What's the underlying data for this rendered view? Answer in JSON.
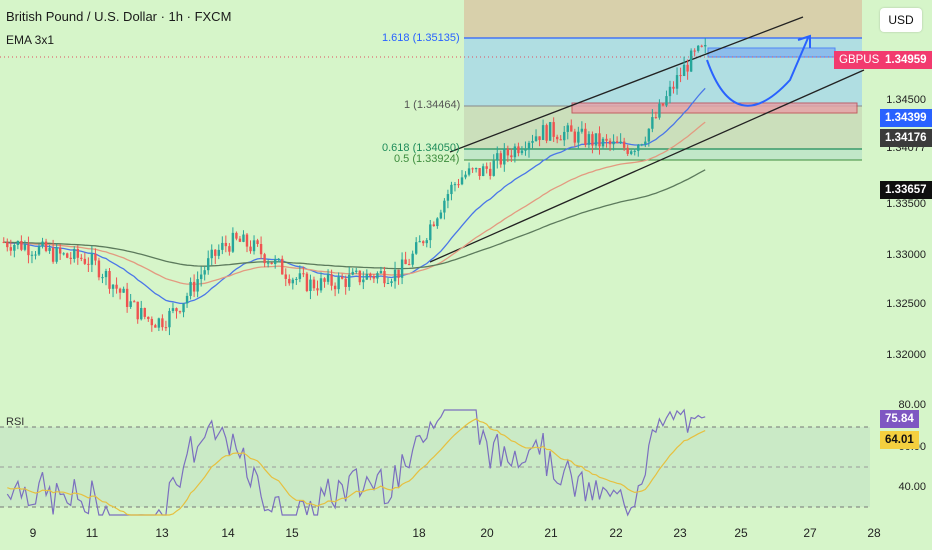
{
  "header": {
    "title": "British Pound / U.S. Dollar · 1h · FXCM",
    "indicator": "EMA 3x1"
  },
  "currency_button": "USD",
  "symbol_tag": "GBPUSD",
  "price_axis": {
    "ticks": [
      "1.34500",
      "1.34077",
      "1.33500",
      "1.33000",
      "1.32500",
      "1.32000"
    ]
  },
  "rsi": {
    "label": "RSI",
    "ticks": [
      "80.00",
      "60.00",
      "40.00"
    ],
    "value_tags": [
      "75.84",
      "64.01"
    ]
  },
  "price_tags": [
    {
      "value": "1.34959",
      "bg": "#f23a6e",
      "fg": "#ffffff"
    },
    {
      "value": "1.34399",
      "bg": "#2962ff",
      "fg": "#ffffff"
    },
    {
      "value": "1.34176",
      "bg": "#3b3b3b",
      "fg": "#ffffff"
    },
    {
      "value": "1.33657",
      "bg": "#0f0f0f",
      "fg": "#ffffff"
    }
  ],
  "fib_levels": [
    {
      "label": "1.618 (1.35135)",
      "color": "#2962ff"
    },
    {
      "label": "1 (1.34464)",
      "color": "#555555"
    },
    {
      "label": "0.618 (1.34050)",
      "color": "#1e8c5a"
    },
    {
      "label": "0.5 (1.33924)",
      "color": "#3d8c3d"
    }
  ],
  "x_axis": [
    "9",
    "11",
    "13",
    "14",
    "15",
    "18",
    "20",
    "21",
    "22",
    "23",
    "25",
    "27",
    "28"
  ],
  "chart_data": {
    "type": "line",
    "title": "British Pound / U.S. Dollar · 1h · FXCM",
    "ylim": [
      1.316,
      1.3545
    ],
    "x": [
      "9",
      "11",
      "13",
      "14",
      "15",
      "18",
      "20",
      "21",
      "22",
      "23"
    ],
    "series": [
      {
        "name": "GBPUSD",
        "values": [
          1.3315,
          1.33,
          1.324,
          1.3315,
          1.3275,
          1.3285,
          1.338,
          1.342,
          1.3405,
          1.3496
        ]
      }
    ],
    "colors": {
      "up": "#26a69a",
      "down": "#ef5350",
      "ema_fast": "#4a76e8",
      "ema_mid": "#e39a80",
      "ema_slow": "#5c7a5c"
    }
  }
}
